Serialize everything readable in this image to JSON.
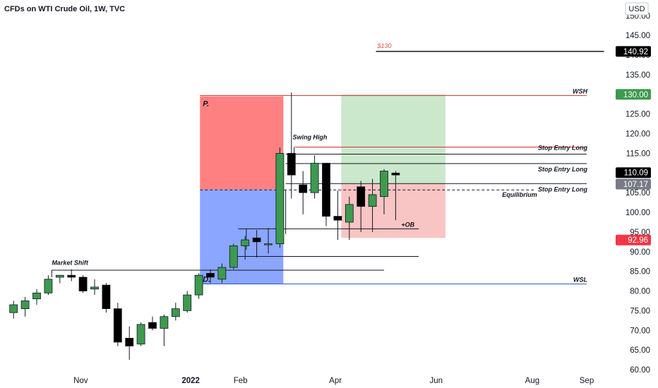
{
  "title": "CFDs on WTI Crude Oil, 1W, TVC",
  "currency": "USD",
  "colors": {
    "bull": "#3d9a4f",
    "bear": "#000000",
    "premium": "#ff8080",
    "discount": "#8aa6ff",
    "target": "#cce8cc",
    "stop": "#f9c4c4",
    "target_line": "#d32f2f",
    "wsl_line": "#2e5cb8"
  },
  "chart_data": {
    "type": "candlestick",
    "title": "CFDs on WTI Crude Oil, 1W, TVC",
    "ylim": [
      60,
      152
    ],
    "y_ticks": [
      "60.00",
      "65.00",
      "70.00",
      "75.00",
      "80.00",
      "85.00",
      "90.00",
      "95.00",
      "100.00",
      "105.00",
      "110.00",
      "115.00",
      "120.00",
      "125.00",
      "130.00",
      "135.00",
      "140.00",
      "145.00",
      "150.00"
    ],
    "x_ticks": [
      {
        "label": "Nov",
        "bar": 6.3
      },
      {
        "label": "2022",
        "bar": 15.8,
        "bold": true
      },
      {
        "label": "Feb",
        "bar": 20.1
      },
      {
        "label": "Apr",
        "bar": 28.3
      },
      {
        "label": "Jun",
        "bar": 37.0
      },
      {
        "label": "Aug",
        "bar": 45.3
      },
      {
        "label": "Sep",
        "bar": 50.0
      }
    ],
    "candles": [
      {
        "o": 74.5,
        "h": 77.5,
        "l": 73.0,
        "c": 76.5
      },
      {
        "o": 75.5,
        "h": 78.5,
        "l": 73.5,
        "c": 77.5
      },
      {
        "o": 78.0,
        "h": 80.5,
        "l": 76.5,
        "c": 79.5
      },
      {
        "o": 79.5,
        "h": 84.0,
        "l": 79.0,
        "c": 83.0
      },
      {
        "o": 83.5,
        "h": 84.0,
        "l": 82.0,
        "c": 84.0
      },
      {
        "o": 84.0,
        "h": 85.5,
        "l": 82.5,
        "c": 83.5
      },
      {
        "o": 83.5,
        "h": 84.0,
        "l": 79.5,
        "c": 80.0
      },
      {
        "o": 80.5,
        "h": 83.0,
        "l": 79.0,
        "c": 81.0
      },
      {
        "o": 81.5,
        "h": 82.0,
        "l": 74.5,
        "c": 75.5
      },
      {
        "o": 75.5,
        "h": 77.0,
        "l": 66.0,
        "c": 67.0
      },
      {
        "o": 68.0,
        "h": 71.0,
        "l": 62.5,
        "c": 66.0
      },
      {
        "o": 66.5,
        "h": 72.0,
        "l": 66.0,
        "c": 71.5
      },
      {
        "o": 72.0,
        "h": 73.5,
        "l": 70.0,
        "c": 70.5
      },
      {
        "o": 70.5,
        "h": 74.0,
        "l": 66.0,
        "c": 73.5
      },
      {
        "o": 73.5,
        "h": 77.0,
        "l": 72.5,
        "c": 75.5
      },
      {
        "o": 75.0,
        "h": 80.0,
        "l": 74.5,
        "c": 79.0
      },
      {
        "o": 79.0,
        "h": 84.5,
        "l": 78.0,
        "c": 84.0
      },
      {
        "o": 84.5,
        "h": 85.5,
        "l": 82.0,
        "c": 83.5
      },
      {
        "o": 83.0,
        "h": 87.0,
        "l": 82.0,
        "c": 86.0
      },
      {
        "o": 86.0,
        "h": 92.0,
        "l": 85.5,
        "c": 91.5
      },
      {
        "o": 91.5,
        "h": 94.0,
        "l": 88.0,
        "c": 93.0
      },
      {
        "o": 93.5,
        "h": 95.5,
        "l": 88.5,
        "c": 92.5
      },
      {
        "o": 92.0,
        "h": 96.0,
        "l": 89.5,
        "c": 92.0
      },
      {
        "o": 92.0,
        "h": 116.5,
        "l": 91.0,
        "c": 115.0
      },
      {
        "o": 115.0,
        "h": 130.5,
        "l": 103.5,
        "c": 109.5
      },
      {
        "o": 107.0,
        "h": 110.5,
        "l": 99.5,
        "c": 105.0
      },
      {
        "o": 105.0,
        "h": 114.5,
        "l": 103.5,
        "c": 112.5
      },
      {
        "o": 112.5,
        "h": 112.5,
        "l": 96.5,
        "c": 99.0
      },
      {
        "o": 99.0,
        "h": 105.5,
        "l": 93.0,
        "c": 98.0
      },
      {
        "o": 97.5,
        "h": 104.0,
        "l": 93.0,
        "c": 102.0
      },
      {
        "o": 106.5,
        "h": 108.0,
        "l": 95.0,
        "c": 101.5
      },
      {
        "o": 101.5,
        "h": 108.5,
        "l": 95.0,
        "c": 104.5
      },
      {
        "o": 104.0,
        "h": 111.0,
        "l": 99.5,
        "c": 110.5
      },
      {
        "o": 110.0,
        "h": 110.5,
        "l": 98.0,
        "c": 109.5
      }
    ],
    "zones": [
      {
        "name": "premium",
        "label": "P.",
        "bar_from": 16.6,
        "bar_to": 23.8,
        "y_from": 129.5,
        "y_to": 105.8
      },
      {
        "name": "discount",
        "label": "D.",
        "bar_from": 16.6,
        "bar_to": 23.8,
        "y_from": 105.8,
        "y_to": 81.8
      },
      {
        "name": "target",
        "bar_from": 28.8,
        "bar_to": 37.8,
        "y_from": 130.0,
        "y_to": 107.17
      },
      {
        "name": "stop",
        "bar_from": 28.8,
        "bar_to": 37.8,
        "y_from": 107.17,
        "y_to": 93.5
      }
    ],
    "levels": [
      {
        "name": "wsh",
        "label": "WSH",
        "y": 129.7,
        "from": 16.6,
        "to": 50.0
      },
      {
        "name": "stop-entry-1",
        "label": "Stop Entry Long",
        "y": 116.6,
        "from": 24.8,
        "to": 50.0
      },
      {
        "name": "stop-entry-1b",
        "label": "",
        "y": 114.8,
        "from": 24.0,
        "to": 50.0
      },
      {
        "name": "stop-entry-2",
        "label": "Stop Entry Long",
        "y": 112.4,
        "from": 24.0,
        "to": 50.0
      },
      {
        "name": "stop-entry-3",
        "label": "Stop Entry Long",
        "y": 107.3,
        "from": 24.0,
        "to": 50.0
      },
      {
        "name": "equilibrium",
        "label": "Equilibrium",
        "y": 105.7,
        "from": 16.6,
        "to": 45.5,
        "dashed": true
      },
      {
        "name": "ob",
        "label": "+OB",
        "y": 95.8,
        "from": 19.9,
        "to": 35.5
      },
      {
        "name": "low-line",
        "label": "",
        "y": 88.8,
        "from": 19.5,
        "to": 35.5
      },
      {
        "name": "market-shift",
        "label": "Market Shift",
        "y": 85.3,
        "from": 3.8,
        "to": 32.5
      },
      {
        "name": "wsl",
        "label": "WSL",
        "y": 81.8,
        "from": 16.6,
        "to": 50.0
      },
      {
        "name": "target-130",
        "label": "$130",
        "y": 140.92,
        "from": 31.8,
        "to": 51.5
      }
    ],
    "annotations": [
      {
        "text": "Swing High",
        "bar": 24.6,
        "y": 118.2
      },
      {
        "text": "Market Shift",
        "bar": 3.8,
        "y": 86.3
      }
    ],
    "price_tags": [
      {
        "value": "140.92",
        "y": 140.92,
        "bg": "#000000"
      },
      {
        "value": "130.00",
        "y": 130.0,
        "bg": "#3d9a4f"
      },
      {
        "value": "110.09",
        "y": 110.09,
        "bg": "#000000"
      },
      {
        "value": "107.17",
        "y": 107.17,
        "bg": "#787b86"
      },
      {
        "value": "92.96",
        "y": 92.96,
        "bg": "#f23645"
      }
    ]
  }
}
